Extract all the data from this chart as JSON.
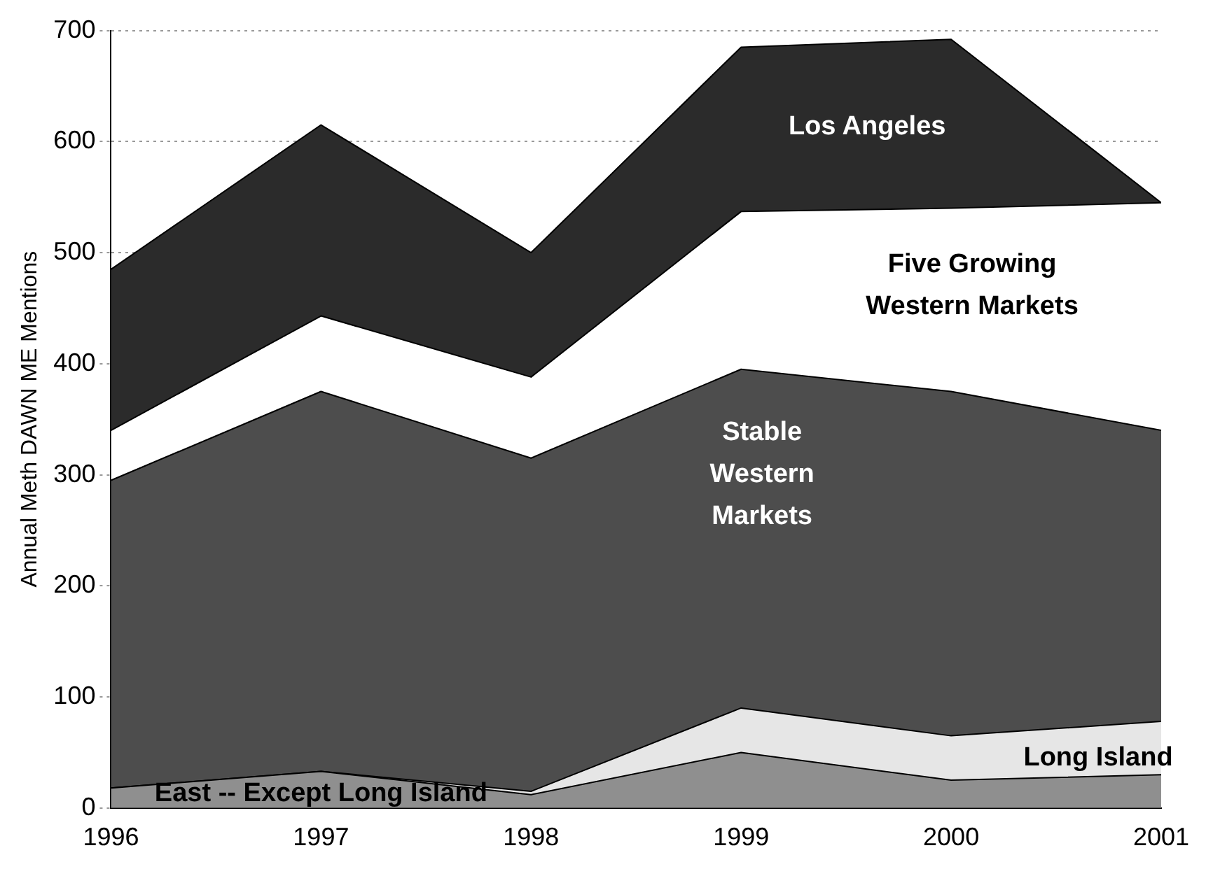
{
  "chart_data": {
    "type": "area",
    "stacked": true,
    "ylabel": "Annual Meth DAWN ME Mentions",
    "x": [
      1996,
      1997,
      1998,
      1999,
      2000,
      2001
    ],
    "xlim": [
      1996,
      2001
    ],
    "xticks": [
      1996,
      1997,
      1998,
      1999,
      2000,
      2001
    ],
    "ylim": [
      0,
      700
    ],
    "yticks": [
      0,
      100,
      200,
      300,
      400,
      500,
      600,
      700
    ],
    "grid": "y",
    "legend": false,
    "series": [
      {
        "name": "East -- Except Long Island",
        "color": "#8f8f8f",
        "values": [
          18,
          33,
          12,
          50,
          25,
          30
        ]
      },
      {
        "name": "Long Island",
        "color": "#e6e6e6",
        "values": [
          0,
          0,
          3,
          40,
          40,
          48
        ]
      },
      {
        "name": "Stable Western Markets",
        "color": "#4d4d4d",
        "values": [
          277,
          342,
          300,
          305,
          310,
          262
        ]
      },
      {
        "name": "Five Growing Western Markets",
        "color": "#ffffff",
        "values": [
          45,
          68,
          73,
          142,
          165,
          205
        ]
      },
      {
        "name": "Los Angeles",
        "color": "#2b2b2b",
        "values": [
          145,
          172,
          112,
          148,
          152,
          0
        ]
      }
    ]
  }
}
